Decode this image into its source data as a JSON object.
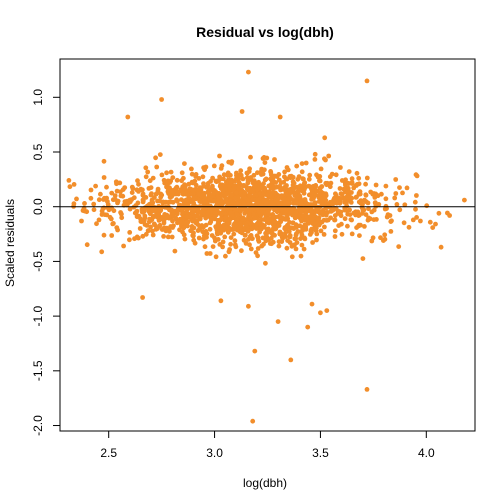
{
  "chart_data": {
    "type": "scatter",
    "title": "Residual vs log(dbh)",
    "xlabel": "log(dbh)",
    "ylabel": "Scaled residuals",
    "xlim": [
      2.27,
      4.23
    ],
    "ylim": [
      -2.05,
      1.35
    ],
    "xticks": [
      2.5,
      3.0,
      3.5,
      4.0
    ],
    "xtick_labels": [
      "2.5",
      "3.0",
      "3.5",
      "4.0"
    ],
    "yticks": [
      -2.0,
      -1.5,
      -1.0,
      -0.5,
      0.0,
      0.5,
      1.0
    ],
    "ytick_labels": [
      "-2.0",
      "-1.5",
      "-1.0",
      "-0.5",
      "0.0",
      "0.5",
      "1.0"
    ],
    "hline_y": 0,
    "grid": false,
    "point_color": "#F28E2B",
    "bulk_points": {
      "count": 1900,
      "x_range": [
        2.3,
        4.18
      ],
      "x_center": 3.15,
      "y_spread": 0.15
    },
    "notable_points": [
      {
        "x": 3.16,
        "y": 1.23
      },
      {
        "x": 3.72,
        "y": 1.15
      },
      {
        "x": 2.75,
        "y": 0.98
      },
      {
        "x": 2.59,
        "y": 0.82
      },
      {
        "x": 3.13,
        "y": 0.87
      },
      {
        "x": 3.31,
        "y": 0.82
      },
      {
        "x": 3.52,
        "y": 0.63
      },
      {
        "x": 3.19,
        "y": -1.32
      },
      {
        "x": 3.3,
        "y": -1.05
      },
      {
        "x": 3.36,
        "y": -1.4
      },
      {
        "x": 3.44,
        "y": -1.1
      },
      {
        "x": 3.5,
        "y": -0.97
      },
      {
        "x": 3.53,
        "y": -0.95
      },
      {
        "x": 3.72,
        "y": -1.67
      },
      {
        "x": 3.18,
        "y": -1.96
      },
      {
        "x": 2.66,
        "y": -0.83
      },
      {
        "x": 3.03,
        "y": -0.86
      },
      {
        "x": 3.16,
        "y": -0.91
      },
      {
        "x": 3.46,
        "y": -0.89
      },
      {
        "x": 4.07,
        "y": -0.37
      },
      {
        "x": 4.18,
        "y": 0.06
      },
      {
        "x": 4.11,
        "y": -0.08
      }
    ]
  }
}
